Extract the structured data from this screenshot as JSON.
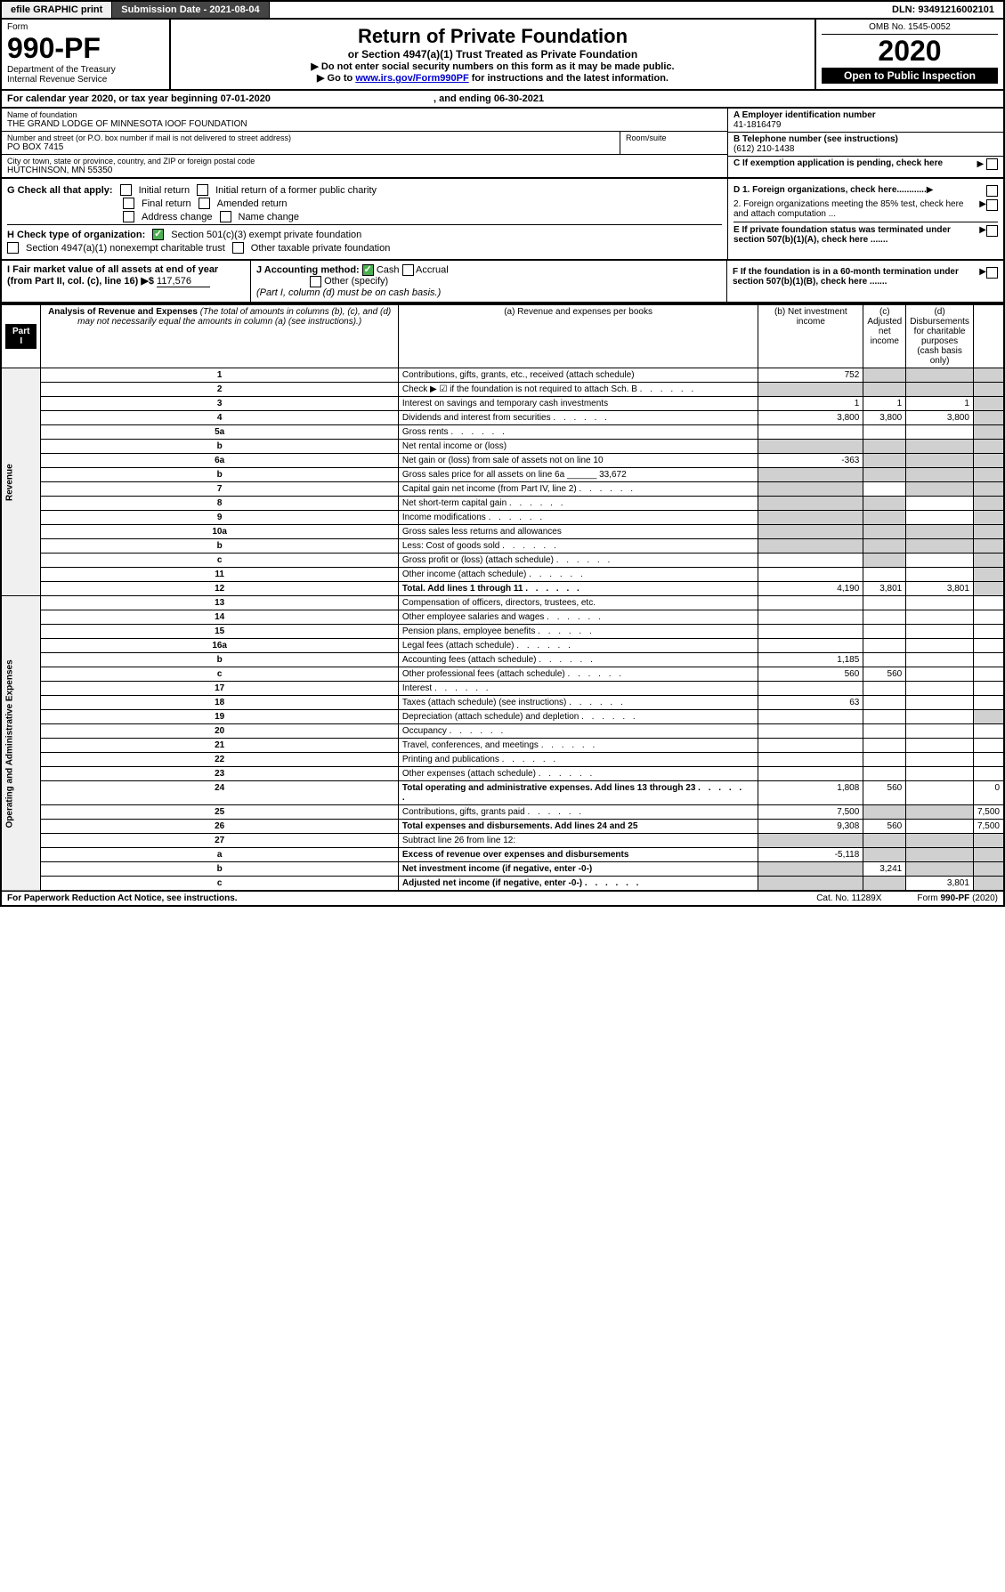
{
  "topbar": {
    "efile": "efile GRAPHIC print",
    "submission": "Submission Date - 2021-08-04",
    "dln": "DLN: 93491216002101"
  },
  "header": {
    "form_label": "Form",
    "form_num": "990-PF",
    "dept": "Department of the Treasury",
    "irs": "Internal Revenue Service",
    "title": "Return of Private Foundation",
    "subtitle": "or Section 4947(a)(1) Trust Treated as Private Foundation",
    "note1": "▶ Do not enter social security numbers on this form as it may be made public.",
    "note2_pre": "▶ Go to ",
    "note2_link": "www.irs.gov/Form990PF",
    "note2_post": " for instructions and the latest information.",
    "omb": "OMB No. 1545-0052",
    "year": "2020",
    "inspection": "Open to Public Inspection"
  },
  "calendar": {
    "text_pre": "For calendar year 2020, or tax year beginning ",
    "begin": "07-01-2020",
    "text_mid": " , and ending ",
    "end": "06-30-2021"
  },
  "info": {
    "name_label": "Name of foundation",
    "name": "THE GRAND LODGE OF MINNESOTA IOOF FOUNDATION",
    "addr_label": "Number and street (or P.O. box number if mail is not delivered to street address)",
    "addr": "PO BOX 7415",
    "room_label": "Room/suite",
    "city_label": "City or town, state or province, country, and ZIP or foreign postal code",
    "city": "HUTCHINSON, MN  55350",
    "ein_label": "A Employer identification number",
    "ein": "41-1816479",
    "phone_label": "B Telephone number (see instructions)",
    "phone": "(612) 210-1438",
    "c_label": "C If exemption application is pending, check here"
  },
  "sectionG": {
    "label": "G Check all that apply:",
    "opts": [
      "Initial return",
      "Initial return of a former public charity",
      "Final return",
      "Amended return",
      "Address change",
      "Name change"
    ]
  },
  "sectionH": {
    "label": "H Check type of organization:",
    "opt1": "Section 501(c)(3) exempt private foundation",
    "opt2": "Section 4947(a)(1) nonexempt charitable trust",
    "opt3": "Other taxable private foundation"
  },
  "sectionD": {
    "d1": "D 1. Foreign organizations, check here............",
    "d2": "2. Foreign organizations meeting the 85% test, check here and attach computation ...",
    "e": "E If private foundation status was terminated under section 507(b)(1)(A), check here .......",
    "f": "F If the foundation is in a 60-month termination under section 507(b)(1)(B), check here ......."
  },
  "sectionI": {
    "label": "I Fair market value of all assets at end of year (from Part II, col. (c), line 16) ▶$",
    "value": "117,576"
  },
  "sectionJ": {
    "label": "J Accounting method:",
    "cash": "Cash",
    "accrual": "Accrual",
    "other": "Other (specify)",
    "note": "(Part I, column (d) must be on cash basis.)"
  },
  "part1": {
    "label": "Part I",
    "title": "Analysis of Revenue and Expenses",
    "note": "(The total of amounts in columns (b), (c), and (d) may not necessarily equal the amounts in column (a) (see instructions).)",
    "col_a": "(a) Revenue and expenses per books",
    "col_b": "(b) Net investment income",
    "col_c": "(c) Adjusted net income",
    "col_d": "(d) Disbursements for charitable purposes (cash basis only)",
    "side_rev": "Revenue",
    "side_exp": "Operating and Administrative Expenses"
  },
  "rows": [
    {
      "n": "1",
      "desc": "Contributions, gifts, grants, etc., received (attach schedule)",
      "a": "752",
      "b": "",
      "c": "",
      "d": "",
      "ds": false,
      "shade_b": true,
      "shade_c": true,
      "shade_d": true
    },
    {
      "n": "2",
      "desc": "Check ▶ ☑ if the foundation is not required to attach Sch. B",
      "a": "",
      "b": "",
      "c": "",
      "d": "",
      "ds": true,
      "shade_a": true,
      "shade_b": true,
      "shade_c": true,
      "shade_d": true
    },
    {
      "n": "3",
      "desc": "Interest on savings and temporary cash investments",
      "a": "1",
      "b": "1",
      "c": "1",
      "d": "",
      "shade_d": true
    },
    {
      "n": "4",
      "desc": "Dividends and interest from securities",
      "a": "3,800",
      "b": "3,800",
      "c": "3,800",
      "d": "",
      "ds": true,
      "shade_d": true
    },
    {
      "n": "5a",
      "desc": "Gross rents",
      "a": "",
      "b": "",
      "c": "",
      "d": "",
      "ds": true,
      "shade_d": true
    },
    {
      "n": "b",
      "desc": "Net rental income or (loss)",
      "a": "",
      "b": "",
      "c": "",
      "d": "",
      "shade_a": true,
      "shade_b": true,
      "shade_c": true,
      "shade_d": true
    },
    {
      "n": "6a",
      "desc": "Net gain or (loss) from sale of assets not on line 10",
      "a": "-363",
      "b": "",
      "c": "",
      "d": "",
      "shade_b": true,
      "shade_c": true,
      "shade_d": true
    },
    {
      "n": "b",
      "desc": "Gross sales price for all assets on line 6a ______ 33,672",
      "a": "",
      "b": "",
      "c": "",
      "d": "",
      "shade_a": true,
      "shade_b": true,
      "shade_c": true,
      "shade_d": true
    },
    {
      "n": "7",
      "desc": "Capital gain net income (from Part IV, line 2)",
      "a": "",
      "b": "",
      "c": "",
      "d": "",
      "ds": true,
      "shade_a": true,
      "shade_c": true,
      "shade_d": true
    },
    {
      "n": "8",
      "desc": "Net short-term capital gain",
      "a": "",
      "b": "",
      "c": "",
      "d": "",
      "ds": true,
      "shade_a": true,
      "shade_b": true,
      "shade_d": true
    },
    {
      "n": "9",
      "desc": "Income modifications",
      "a": "",
      "b": "",
      "c": "",
      "d": "",
      "ds": true,
      "shade_a": true,
      "shade_b": true,
      "shade_d": true
    },
    {
      "n": "10a",
      "desc": "Gross sales less returns and allowances",
      "a": "",
      "b": "",
      "c": "",
      "d": "",
      "shade_a": true,
      "shade_b": true,
      "shade_c": true,
      "shade_d": true
    },
    {
      "n": "b",
      "desc": "Less: Cost of goods sold",
      "a": "",
      "b": "",
      "c": "",
      "d": "",
      "ds": true,
      "shade_a": true,
      "shade_b": true,
      "shade_c": true,
      "shade_d": true
    },
    {
      "n": "c",
      "desc": "Gross profit or (loss) (attach schedule)",
      "a": "",
      "b": "",
      "c": "",
      "d": "",
      "ds": true,
      "shade_b": true,
      "shade_d": true
    },
    {
      "n": "11",
      "desc": "Other income (attach schedule)",
      "a": "",
      "b": "",
      "c": "",
      "d": "",
      "ds": true,
      "shade_d": true
    },
    {
      "n": "12",
      "desc": "Total. Add lines 1 through 11",
      "a": "4,190",
      "b": "3,801",
      "c": "3,801",
      "d": "",
      "ds": true,
      "bold": true,
      "shade_d": true
    },
    {
      "n": "13",
      "desc": "Compensation of officers, directors, trustees, etc.",
      "a": "",
      "b": "",
      "c": "",
      "d": ""
    },
    {
      "n": "14",
      "desc": "Other employee salaries and wages",
      "a": "",
      "b": "",
      "c": "",
      "d": "",
      "ds": true
    },
    {
      "n": "15",
      "desc": "Pension plans, employee benefits",
      "a": "",
      "b": "",
      "c": "",
      "d": "",
      "ds": true
    },
    {
      "n": "16a",
      "desc": "Legal fees (attach schedule)",
      "a": "",
      "b": "",
      "c": "",
      "d": "",
      "ds": true
    },
    {
      "n": "b",
      "desc": "Accounting fees (attach schedule)",
      "a": "1,185",
      "b": "",
      "c": "",
      "d": "",
      "ds": true
    },
    {
      "n": "c",
      "desc": "Other professional fees (attach schedule)",
      "a": "560",
      "b": "560",
      "c": "",
      "d": "",
      "ds": true
    },
    {
      "n": "17",
      "desc": "Interest",
      "a": "",
      "b": "",
      "c": "",
      "d": "",
      "ds": true
    },
    {
      "n": "18",
      "desc": "Taxes (attach schedule) (see instructions)",
      "a": "63",
      "b": "",
      "c": "",
      "d": "",
      "ds": true
    },
    {
      "n": "19",
      "desc": "Depreciation (attach schedule) and depletion",
      "a": "",
      "b": "",
      "c": "",
      "d": "",
      "ds": true,
      "shade_d": true
    },
    {
      "n": "20",
      "desc": "Occupancy",
      "a": "",
      "b": "",
      "c": "",
      "d": "",
      "ds": true
    },
    {
      "n": "21",
      "desc": "Travel, conferences, and meetings",
      "a": "",
      "b": "",
      "c": "",
      "d": "",
      "ds": true
    },
    {
      "n": "22",
      "desc": "Printing and publications",
      "a": "",
      "b": "",
      "c": "",
      "d": "",
      "ds": true
    },
    {
      "n": "23",
      "desc": "Other expenses (attach schedule)",
      "a": "",
      "b": "",
      "c": "",
      "d": "",
      "ds": true
    },
    {
      "n": "24",
      "desc": "Total operating and administrative expenses. Add lines 13 through 23",
      "a": "1,808",
      "b": "560",
      "c": "",
      "d": "0",
      "ds": true,
      "bold": true
    },
    {
      "n": "25",
      "desc": "Contributions, gifts, grants paid",
      "a": "7,500",
      "b": "",
      "c": "",
      "d": "7,500",
      "ds": true,
      "shade_b": true,
      "shade_c": true
    },
    {
      "n": "26",
      "desc": "Total expenses and disbursements. Add lines 24 and 25",
      "a": "9,308",
      "b": "560",
      "c": "",
      "d": "7,500",
      "bold": true
    },
    {
      "n": "27",
      "desc": "Subtract line 26 from line 12:",
      "a": "",
      "b": "",
      "c": "",
      "d": "",
      "shade_a": true,
      "shade_b": true,
      "shade_c": true,
      "shade_d": true
    },
    {
      "n": "a",
      "desc": "Excess of revenue over expenses and disbursements",
      "a": "-5,118",
      "b": "",
      "c": "",
      "d": "",
      "bold": true,
      "shade_b": true,
      "shade_c": true,
      "shade_d": true
    },
    {
      "n": "b",
      "desc": "Net investment income (if negative, enter -0-)",
      "a": "",
      "b": "3,241",
      "c": "",
      "d": "",
      "bold": true,
      "shade_a": true,
      "shade_c": true,
      "shade_d": true
    },
    {
      "n": "c",
      "desc": "Adjusted net income (if negative, enter -0-)",
      "a": "",
      "b": "",
      "c": "3,801",
      "d": "",
      "ds": true,
      "bold": true,
      "shade_a": true,
      "shade_b": true,
      "shade_d": true
    }
  ],
  "footer": {
    "left": "For Paperwork Reduction Act Notice, see instructions.",
    "mid": "Cat. No. 11289X",
    "right": "Form 990-PF (2020)"
  }
}
